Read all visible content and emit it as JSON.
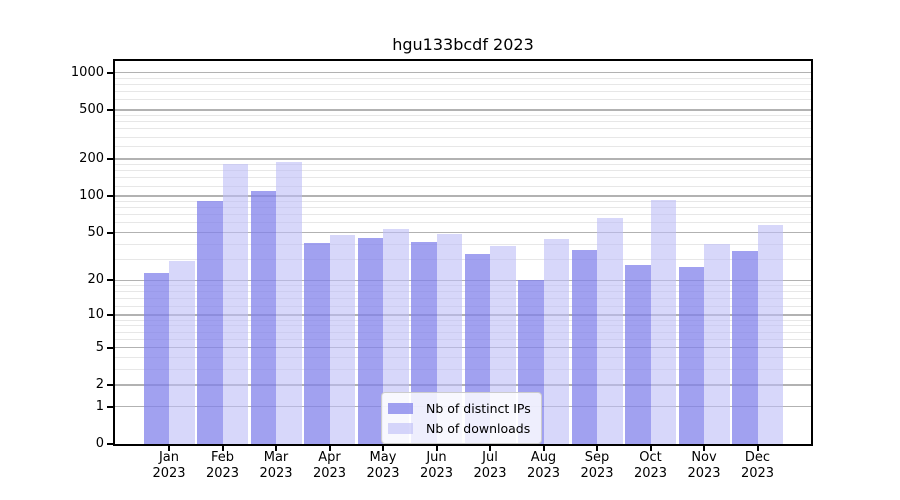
{
  "chart_data": {
    "type": "bar",
    "title": "hgu133bcdf 2023",
    "categories": [
      "Jan",
      "Feb",
      "Mar",
      "Apr",
      "May",
      "Jun",
      "Jul",
      "Aug",
      "Sep",
      "Oct",
      "Nov",
      "Dec"
    ],
    "year_label": "2023",
    "series": [
      {
        "name": "Nb of distinct IPs",
        "short": "distinct-ips",
        "color": "rgba(128,128,235,0.74)",
        "values": [
          23,
          91,
          110,
          41,
          45,
          42,
          33,
          20,
          36,
          27,
          26,
          35
        ]
      },
      {
        "name": "Nb of downloads",
        "short": "downloads",
        "color": "rgba(188,188,246,0.60)",
        "values": [
          29,
          182,
          190,
          48,
          54,
          49,
          39,
          44,
          66,
          92,
          40,
          58
        ]
      }
    ],
    "y_ticks": [
      0,
      1,
      2,
      5,
      10,
      20,
      50,
      100,
      200,
      500,
      1000
    ],
    "y_minor_ticks": [
      3,
      4,
      6,
      7,
      8,
      9,
      12,
      14,
      16,
      18,
      30,
      40,
      60,
      70,
      80,
      90,
      120,
      140,
      160,
      180,
      250,
      300,
      350,
      400,
      450,
      600,
      700,
      800,
      900
    ],
    "scale": "log10(value+1)",
    "ylim": [
      0,
      1240
    ],
    "grid": true,
    "legend_position": "lower center",
    "colors": {
      "axis": "#000000",
      "grid_major": "#b2b2b2",
      "grid_minor": "#e7e7e7",
      "background": "#ffffff"
    }
  }
}
